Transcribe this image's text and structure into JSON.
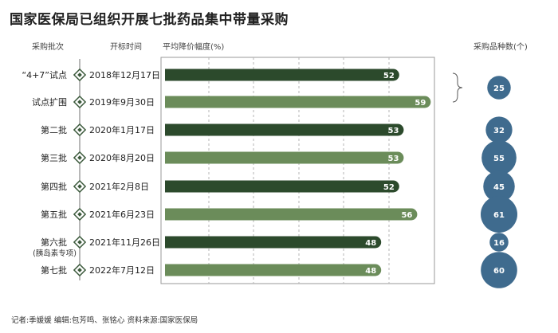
{
  "title": "国家医保局已组织开展七批药品集中带量采购",
  "headers": {
    "batch": "采购批次",
    "date": "开标时间",
    "rate": "平均降价幅度(%)",
    "count": "采购品种数(个)"
  },
  "footer": "记者:季媛媛  编辑:包芳鸣、张铭心  资料来源:国家医保局",
  "colors": {
    "dark": "#2c4a2c",
    "light": "#6b8c5a",
    "bubble": "#3f6b8e",
    "timeline": "#888888"
  },
  "chart_data": {
    "type": "bar",
    "orientation": "horizontal",
    "categories": [
      "“4+7”试点",
      "试点扩围",
      "第二批",
      "第三批",
      "第四批",
      "第五批",
      "第六批",
      "第七批"
    ],
    "sublabels": [
      "",
      "",
      "",
      "",
      "",
      "",
      "(胰岛素专项)",
      ""
    ],
    "dates": [
      "2018年12月17日",
      "2019年9月30日",
      "2020年1月17日",
      "2020年8月20日",
      "2021年2月8日",
      "2021年6月23日",
      "2021年11月26日",
      "2022年7月12日"
    ],
    "series": [
      {
        "name": "平均降价幅度(%)",
        "values": [
          52,
          59,
          53,
          53,
          52,
          56,
          48,
          48
        ]
      },
      {
        "name": "采购品种数(个)",
        "values": [
          25,
          null,
          32,
          55,
          45,
          61,
          16,
          60
        ]
      }
    ],
    "xlim": [
      0,
      60
    ],
    "grid": true
  }
}
